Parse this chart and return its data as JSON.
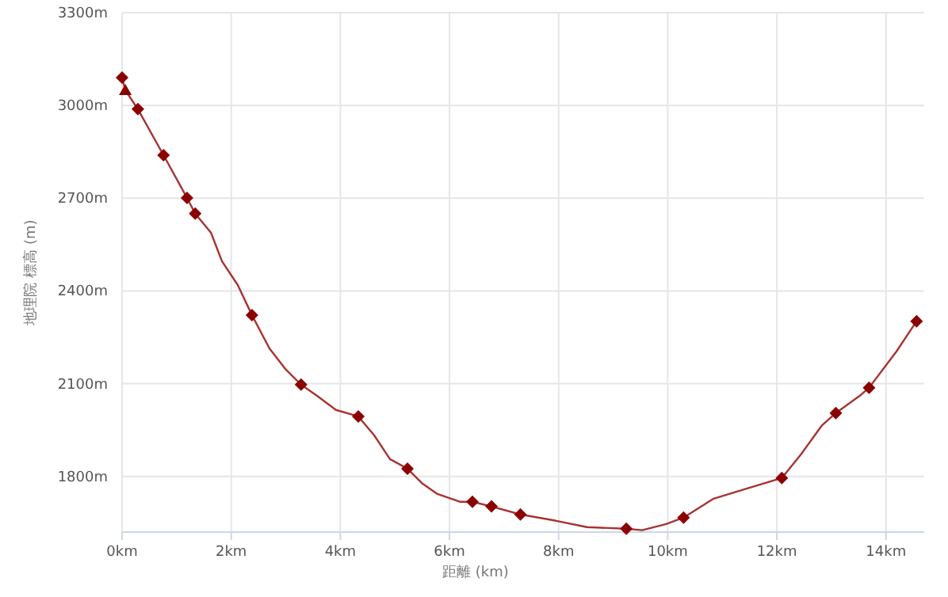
{
  "chart_data": {
    "type": "line",
    "xlabel": "距離 (km)",
    "ylabel": "地理院 標高 (m)",
    "xlim": [
      0,
      14.7
    ],
    "ylim": [
      1620,
      3300
    ],
    "xticks": [
      {
        "value": 0,
        "label": "0km"
      },
      {
        "value": 2,
        "label": "2km"
      },
      {
        "value": 4,
        "label": "4km"
      },
      {
        "value": 6,
        "label": "6km"
      },
      {
        "value": 8,
        "label": "8km"
      },
      {
        "value": 10,
        "label": "10km"
      },
      {
        "value": 12,
        "label": "12km"
      },
      {
        "value": 14,
        "label": "14km"
      }
    ],
    "yticks": [
      {
        "value": 1800,
        "label": "1800m"
      },
      {
        "value": 2100,
        "label": "2100m"
      },
      {
        "value": 2400,
        "label": "2400m"
      },
      {
        "value": 2700,
        "label": "2700m"
      },
      {
        "value": 3000,
        "label": "3000m"
      },
      {
        "value": 3300,
        "label": "3300m"
      }
    ],
    "grid": true,
    "series": [
      {
        "color": "#a83232",
        "marker": "none",
        "x": [
          0,
          0.06,
          0.29,
          0.76,
          1.19,
          1.34,
          1.63,
          1.83,
          2.12,
          2.38,
          2.7,
          2.99,
          3.28,
          3.57,
          3.92,
          4.33,
          4.62,
          4.91,
          5.23,
          5.49,
          5.78,
          6.19,
          6.42,
          6.77,
          7.3,
          7.94,
          8.52,
          9.24,
          9.53,
          9.97,
          10.29,
          10.84,
          11.42,
          11.89,
          12.09,
          12.44,
          12.82,
          13.08,
          13.52,
          13.69,
          14.19,
          14.56
        ],
        "values": [
          3090,
          3049,
          2988,
          2839,
          2701,
          2650,
          2588,
          2496,
          2419,
          2322,
          2214,
          2148,
          2097,
          2061,
          2015,
          1994,
          1933,
          1856,
          1825,
          1779,
          1743,
          1718,
          1718,
          1703,
          1677,
          1657,
          1636,
          1631,
          1626,
          1646,
          1667,
          1728,
          1759,
          1784,
          1795,
          1871,
          1964,
          2005,
          2061,
          2087,
          2204,
          2302
        ]
      },
      {
        "type": "scatter",
        "color": "#8b0000",
        "marker": "diamond",
        "x": [
          0,
          0.29,
          0.76,
          1.19,
          1.34,
          2.38,
          3.28,
          4.33,
          5.23,
          6.42,
          6.77,
          7.3,
          9.24,
          10.29,
          12.09,
          13.08,
          13.69,
          14.56
        ],
        "values": [
          3090,
          2988,
          2839,
          2701,
          2650,
          2322,
          2097,
          1994,
          1825,
          1718,
          1703,
          1677,
          1631,
          1667,
          1795,
          2005,
          2087,
          2302
        ]
      },
      {
        "type": "scatter",
        "color": "#8b0000",
        "marker": "triangle",
        "x": [
          0.06
        ],
        "values": [
          3049
        ]
      }
    ]
  }
}
